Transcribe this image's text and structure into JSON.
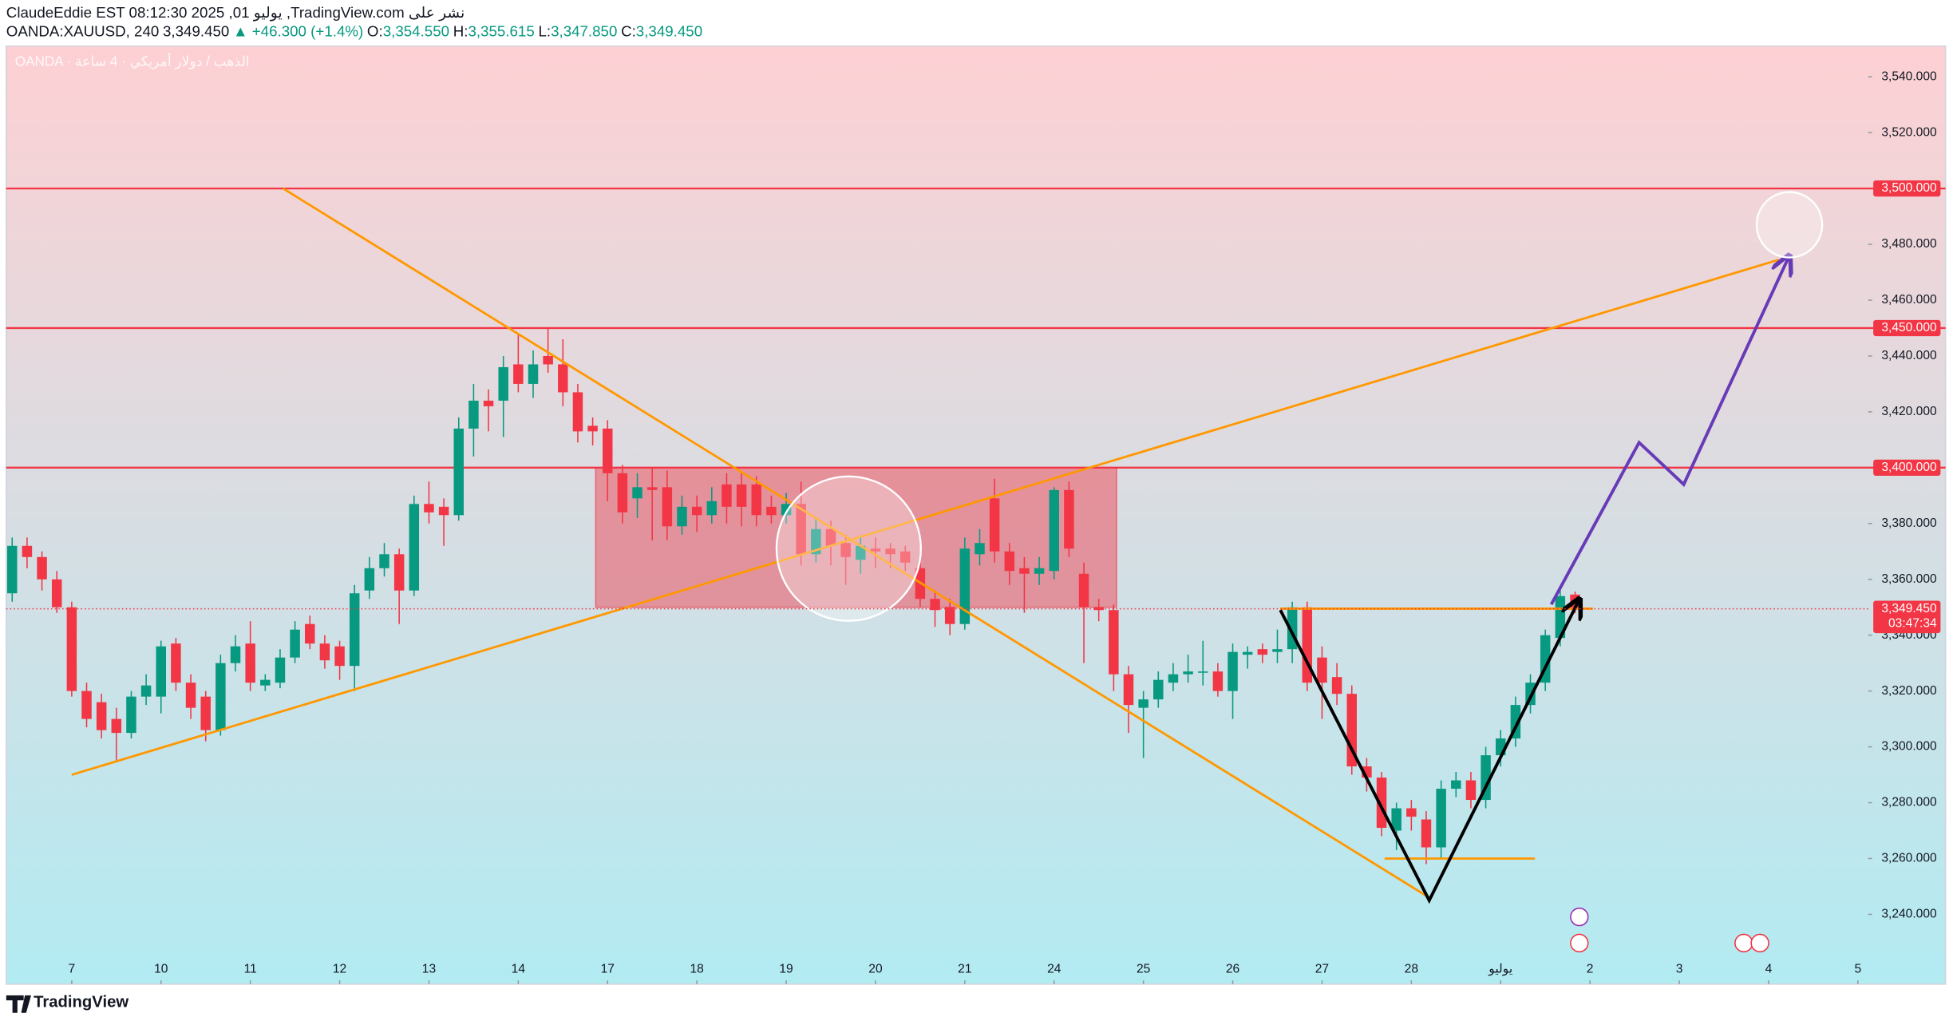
{
  "header": {
    "line1": "ClaudeEddie EST 08:12:30 2025 ,01 يوليو ,TradingView.com نشر على",
    "symbol": "OANDA:XAUUSD, 240",
    "last": "3,349.450",
    "change": "▲ +46.300 (+1.4%)",
    "ohlc": [
      {
        "k": "O:",
        "v": "3,354.550"
      },
      {
        "k": "H:",
        "v": "3,355.615"
      },
      {
        "k": "L:",
        "v": "3,347.850"
      },
      {
        "k": "C:",
        "v": "3,349.450"
      }
    ]
  },
  "footer": "TradingView",
  "chart_data": {
    "type": "candlestick",
    "watermark": "OANDA · الذهب / دولار أمريكي · 4 ساعة",
    "up_color": "#089981",
    "down_color": "#f23645",
    "grid": false,
    "xlim": [
      -0.4,
      124.7
    ],
    "ylim": [
      3215,
      3551
    ],
    "xticks": [
      {
        "value": 4,
        "label": "7"
      },
      {
        "value": 10,
        "label": "10"
      },
      {
        "value": 16,
        "label": "11"
      },
      {
        "value": 22,
        "label": "12"
      },
      {
        "value": 28,
        "label": "13"
      },
      {
        "value": 34,
        "label": "14"
      },
      {
        "value": 40,
        "label": "17"
      },
      {
        "value": 46,
        "label": "18"
      },
      {
        "value": 52,
        "label": "19"
      },
      {
        "value": 58,
        "label": "20"
      },
      {
        "value": 64,
        "label": "21"
      },
      {
        "value": 70,
        "label": "24"
      },
      {
        "value": 76,
        "label": "25"
      },
      {
        "value": 82,
        "label": "26"
      },
      {
        "value": 88,
        "label": "27"
      },
      {
        "value": 94,
        "label": "28"
      },
      {
        "value": 100,
        "label": "يوليو"
      },
      {
        "value": 106,
        "label": "2"
      },
      {
        "value": 112,
        "label": "3"
      },
      {
        "value": 118,
        "label": "4"
      },
      {
        "value": 124,
        "label": "5"
      }
    ],
    "yticks": [
      {
        "value": 3240,
        "label": "3,240.000"
      },
      {
        "value": 3260,
        "label": "3,260.000"
      },
      {
        "value": 3280,
        "label": "3,280.000"
      },
      {
        "value": 3300,
        "label": "3,300.000"
      },
      {
        "value": 3320,
        "label": "3,320.000"
      },
      {
        "value": 3340,
        "label": "3,340.000"
      },
      {
        "value": 3360,
        "label": "3,360.000"
      },
      {
        "value": 3380,
        "label": "3,380.000"
      },
      {
        "value": 3420,
        "label": "3,420.000"
      },
      {
        "value": 3440,
        "label": "3,440.000"
      },
      {
        "value": 3460,
        "label": "3,460.000"
      },
      {
        "value": 3480,
        "label": "3,480.000"
      },
      {
        "value": 3520,
        "label": "3,520.000"
      },
      {
        "value": 3540,
        "label": "3,540.000"
      }
    ],
    "price_lines": [
      {
        "value": 3500,
        "label": "3,500.000",
        "color": "#f23645"
      },
      {
        "value": 3450,
        "label": "3,450.000",
        "color": "#f23645"
      },
      {
        "value": 3400,
        "label": "3,400.000",
        "color": "#f23645"
      }
    ],
    "last_price": {
      "value": 3349.45,
      "label": "3,349.450",
      "countdown": "03:47:34",
      "color": "#f23645"
    },
    "zone": {
      "x": [
        39.2,
        74.2
      ],
      "y": [
        3350,
        3400
      ],
      "color": "#f23645"
    },
    "trendlines": [
      {
        "color": "#ff9800",
        "points": [
          [
            18.2,
            3500
          ],
          [
            95.2,
            3246
          ]
        ]
      },
      {
        "color": "#ff9800",
        "points": [
          [
            4,
            3290
          ],
          [
            118.7,
            3474.5
          ]
        ]
      },
      {
        "color": "#ff9800",
        "points": [
          [
            85.2,
            3349.5
          ],
          [
            106.2,
            3349.5
          ]
        ]
      },
      {
        "color": "#ff9800",
        "points": [
          [
            92.2,
            3260
          ],
          [
            102.3,
            3260
          ]
        ]
      },
      {
        "color": "#000000",
        "arrow": true,
        "points": [
          [
            85.2,
            3349
          ],
          [
            95.2,
            3245
          ],
          [
            105.3,
            3353
          ]
        ]
      },
      {
        "color": "#673ab7",
        "arrow": true,
        "points": [
          [
            103.4,
            3351
          ],
          [
            109.3,
            3409
          ],
          [
            112.3,
            3394
          ],
          [
            119.4,
            3476
          ]
        ]
      }
    ],
    "circles": [
      {
        "center": [
          56.2,
          3371
        ],
        "r": 4.85
      },
      {
        "center": [
          119.4,
          3487
        ],
        "r": 2.2
      }
    ],
    "ohlc": [
      [
        3355,
        3375,
        3352,
        3372
      ],
      [
        3372,
        3375,
        3364,
        3368
      ],
      [
        3368,
        3370,
        3356,
        3360
      ],
      [
        3360,
        3363,
        3348,
        3350
      ],
      [
        3350,
        3352,
        3318,
        3320
      ],
      [
        3320,
        3323,
        3307,
        3310
      ],
      [
        3316,
        3319,
        3303,
        3306
      ],
      [
        3310,
        3314,
        3295,
        3305
      ],
      [
        3305,
        3320,
        3303,
        3318
      ],
      [
        3318,
        3326,
        3315,
        3322
      ],
      [
        3318,
        3338,
        3312,
        3336
      ],
      [
        3337,
        3339,
        3320,
        3323
      ],
      [
        3323,
        3326,
        3310,
        3314
      ],
      [
        3318,
        3320,
        3302,
        3306
      ],
      [
        3306,
        3333,
        3304,
        3330
      ],
      [
        3330,
        3340,
        3327,
        3336
      ],
      [
        3337,
        3345,
        3320,
        3323
      ],
      [
        3322,
        3326,
        3320,
        3324
      ],
      [
        3323,
        3335,
        3321,
        3332
      ],
      [
        3332,
        3345,
        3330,
        3342
      ],
      [
        3344,
        3347,
        3335,
        3337
      ],
      [
        3337,
        3340,
        3328,
        3331
      ],
      [
        3336,
        3338,
        3324,
        3329
      ],
      [
        3329,
        3358,
        3320,
        3355
      ],
      [
        3356,
        3368,
        3353,
        3364
      ],
      [
        3364,
        3373,
        3361,
        3369
      ],
      [
        3369,
        3371,
        3344,
        3356
      ],
      [
        3356,
        3390,
        3354,
        3387
      ],
      [
        3387,
        3395,
        3380,
        3384
      ],
      [
        3386,
        3389,
        3372,
        3383
      ],
      [
        3383,
        3418,
        3381,
        3414
      ],
      [
        3414,
        3430,
        3404,
        3424
      ],
      [
        3424,
        3428,
        3413,
        3422
      ],
      [
        3424,
        3440,
        3411,
        3436
      ],
      [
        3437,
        3448,
        3427,
        3430
      ],
      [
        3430,
        3442,
        3425,
        3437
      ],
      [
        3440,
        3450,
        3434,
        3437
      ],
      [
        3437,
        3446,
        3422,
        3427
      ],
      [
        3427,
        3430,
        3409,
        3413
      ],
      [
        3415,
        3418,
        3408,
        3413
      ],
      [
        3414,
        3417,
        3388,
        3398
      ],
      [
        3398,
        3401,
        3380,
        3384
      ],
      [
        3389,
        3398,
        3382,
        3393
      ],
      [
        3393,
        3400,
        3374,
        3392
      ],
      [
        3393,
        3399,
        3374,
        3379
      ],
      [
        3379,
        3390,
        3376,
        3386
      ],
      [
        3386,
        3390,
        3377,
        3383
      ],
      [
        3383,
        3393,
        3380,
        3388
      ],
      [
        3394,
        3398,
        3380,
        3386
      ],
      [
        3394,
        3398,
        3379,
        3386
      ],
      [
        3394,
        3397,
        3379,
        3383
      ],
      [
        3386,
        3390,
        3380,
        3383
      ],
      [
        3383,
        3391,
        3380,
        3387
      ],
      [
        3387,
        3395,
        3365,
        3369
      ],
      [
        3369,
        3382,
        3366,
        3378
      ],
      [
        3378,
        3381,
        3365,
        3372
      ],
      [
        3373,
        3376,
        3358,
        3368
      ],
      [
        3367,
        3375,
        3362,
        3372
      ],
      [
        3371,
        3375,
        3364,
        3370
      ],
      [
        3371,
        3373,
        3364,
        3369
      ],
      [
        3370,
        3372,
        3363,
        3366
      ],
      [
        3364,
        3368,
        3350,
        3353
      ],
      [
        3353,
        3356,
        3343,
        3349
      ],
      [
        3350,
        3353,
        3340,
        3344
      ],
      [
        3344,
        3375,
        3342,
        3371
      ],
      [
        3369,
        3378,
        3365,
        3373
      ],
      [
        3389,
        3396,
        3366,
        3370
      ],
      [
        3370,
        3373,
        3358,
        3363
      ],
      [
        3364,
        3368,
        3348,
        3362
      ],
      [
        3362,
        3368,
        3358,
        3364
      ],
      [
        3363,
        3393,
        3360,
        3392
      ],
      [
        3392,
        3395,
        3368,
        3371
      ],
      [
        3362,
        3366,
        3330,
        3350
      ],
      [
        3350,
        3353,
        3345,
        3349
      ],
      [
        3349,
        3351,
        3320,
        3326
      ],
      [
        3326,
        3329,
        3305,
        3315
      ],
      [
        3314,
        3320,
        3296,
        3317
      ],
      [
        3317,
        3327,
        3314,
        3324
      ],
      [
        3323,
        3330,
        3320,
        3326
      ],
      [
        3326,
        3333,
        3323,
        3327
      ],
      [
        3327,
        3338,
        3322,
        3327
      ],
      [
        3327,
        3330,
        3318,
        3320
      ],
      [
        3320,
        3337,
        3310,
        3334
      ],
      [
        3333,
        3336,
        3328,
        3334
      ],
      [
        3335,
        3337,
        3330,
        3333
      ],
      [
        3334,
        3342,
        3330,
        3335
      ],
      [
        3335,
        3352,
        3330,
        3350
      ],
      [
        3350,
        3352,
        3320,
        3323
      ],
      [
        3332,
        3336,
        3310,
        3323
      ],
      [
        3325,
        3330,
        3315,
        3319
      ],
      [
        3319,
        3322,
        3290,
        3293
      ],
      [
        3293,
        3296,
        3284,
        3289
      ],
      [
        3289,
        3291,
        3268,
        3271
      ],
      [
        3270,
        3280,
        3263,
        3278
      ],
      [
        3278,
        3281,
        3270,
        3275
      ],
      [
        3274,
        3277,
        3258,
        3264
      ],
      [
        3264,
        3288,
        3260,
        3285
      ],
      [
        3285,
        3291,
        3282,
        3288
      ],
      [
        3288,
        3291,
        3278,
        3281
      ],
      [
        3281,
        3300,
        3278,
        3297
      ],
      [
        3297,
        3306,
        3293,
        3303
      ],
      [
        3303,
        3318,
        3300,
        3315
      ],
      [
        3315,
        3326,
        3312,
        3323
      ],
      [
        3323,
        3342,
        3320,
        3340
      ],
      [
        3339,
        3356,
        3336,
        3354
      ],
      [
        3354.55,
        3355.615,
        3347.85,
        3349.45
      ]
    ]
  }
}
